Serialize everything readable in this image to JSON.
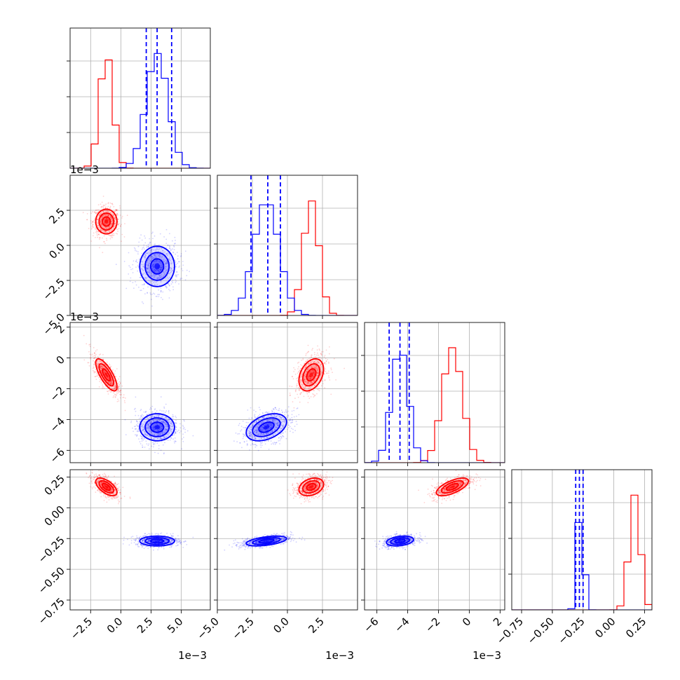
{
  "chart_data": {
    "type": "corner",
    "grid": true,
    "parameters": [
      {
        "offset_label": "1e−3",
        "lim": [
          -4.2,
          7.4
        ],
        "ticks": [
          -2.5,
          0.0,
          2.5,
          5.0
        ],
        "tick_labels": [
          "−2.5",
          "0.0",
          "2.5",
          "5.0"
        ]
      },
      {
        "offset_label": "1e−3",
        "lim": [
          -5.0,
          5.0
        ],
        "ticks": [
          -5.0,
          -2.5,
          0.0,
          2.5
        ],
        "tick_labels": [
          "−5.0",
          "−2.5",
          "0.0",
          "2.5"
        ]
      },
      {
        "offset_label": "1e−3",
        "lim": [
          -6.8,
          2.3
        ],
        "ticks": [
          -6,
          -4,
          -2,
          0,
          2
        ],
        "tick_labels": [
          "−6",
          "−4",
          "−2",
          "0",
          "2"
        ]
      },
      {
        "offset_label": "",
        "lim": [
          -0.83,
          0.31
        ],
        "ticks": [
          -0.75,
          -0.5,
          -0.25,
          0.0,
          0.25
        ],
        "tick_labels": [
          "−0.75",
          "−0.50",
          "−0.25",
          "0.00",
          "0.25"
        ]
      }
    ],
    "series": [
      {
        "color": "#ff0000",
        "means": [
          -1.2,
          1.7,
          -1.1,
          0.17
        ],
        "stds": [
          0.55,
          0.55,
          0.65,
          0.045
        ],
        "corr": [
          [
            1,
            0,
            -0.75,
            -0.6
          ],
          [
            0,
            1,
            0.35,
            0.3
          ],
          [
            -0.75,
            0.35,
            1,
            0.65
          ],
          [
            -0.6,
            0.3,
            0.65,
            1
          ]
        ]
      },
      {
        "color": "#0000ff",
        "means": [
          3.0,
          -1.5,
          -4.5,
          -0.27
        ],
        "stds": [
          0.9,
          0.9,
          0.55,
          0.025
        ],
        "corr": [
          [
            1,
            0,
            0,
            0
          ],
          [
            0,
            1,
            0.4,
            0.5
          ],
          [
            0,
            0.4,
            1,
            0.3
          ],
          [
            0,
            0.5,
            0.3,
            1
          ]
        ]
      }
    ],
    "quantile_lines": {
      "color": "#0000ff",
      "style": "dashed",
      "values": [
        [
          2.1,
          3.0,
          4.2
        ],
        [
          -2.6,
          -1.4,
          -0.5
        ],
        [
          -5.2,
          -4.5,
          -3.9
        ],
        [
          -0.31,
          -0.28,
          -0.25
        ]
      ]
    }
  }
}
